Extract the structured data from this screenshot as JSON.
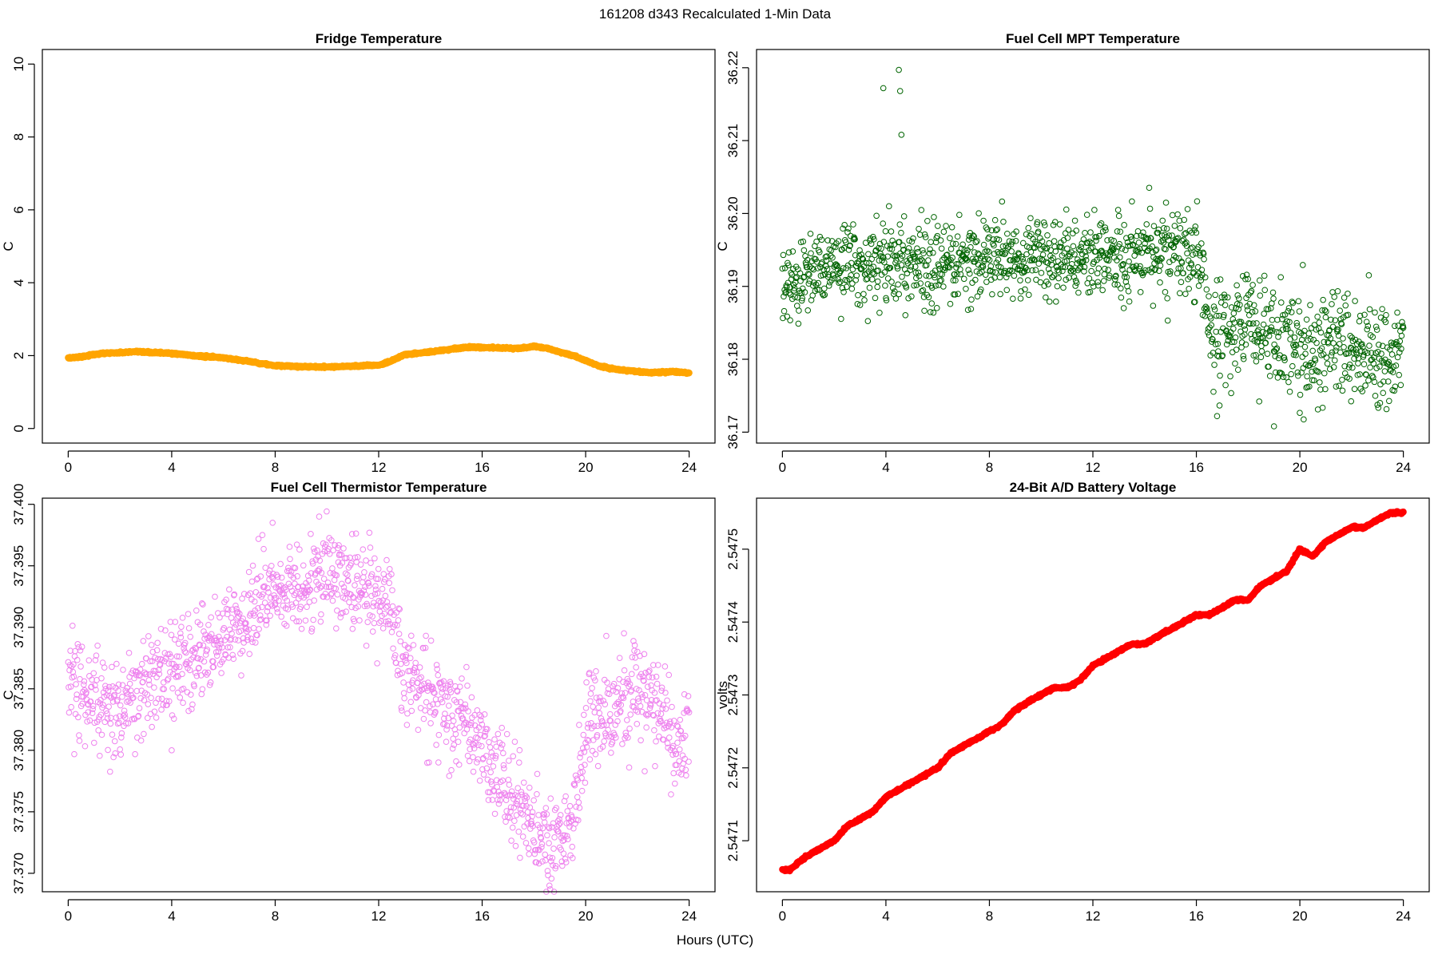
{
  "suptitle": "161208   d343   Recalculated 1-Min Data",
  "xlabel": "Hours (UTC)",
  "chart_data": [
    {
      "type": "scatter",
      "title": "Fridge Temperature",
      "ylabel": "C",
      "xlabel": "Hours (UTC)",
      "xlim": [
        -1,
        25
      ],
      "ylim": [
        -0.4,
        10.4
      ],
      "x_ticks": [
        0,
        4,
        8,
        12,
        16,
        20,
        24
      ],
      "y_ticks": [
        0,
        2,
        4,
        6,
        8,
        10
      ],
      "y_tick_labels": [
        "0",
        "2",
        "4",
        "6",
        "8",
        "10"
      ],
      "color": "#FFA500",
      "marker": "filled",
      "series": [
        {
          "name": "Fridge Temperature",
          "x": [
            0,
            0.5,
            1,
            1.5,
            2,
            2.5,
            3,
            3.5,
            4,
            5,
            6,
            7,
            8,
            9,
            10,
            11,
            11.5,
            12,
            12.5,
            13,
            14,
            15,
            15.5,
            16,
            17,
            17.5,
            18,
            18.5,
            19,
            19.5,
            20,
            20.5,
            21,
            21.5,
            22,
            22.5,
            23,
            23.5,
            24
          ],
          "y": [
            1.93,
            1.97,
            2.03,
            2.07,
            2.08,
            2.1,
            2.09,
            2.08,
            2.06,
            1.99,
            1.94,
            1.84,
            1.72,
            1.7,
            1.69,
            1.71,
            1.73,
            1.73,
            1.85,
            2.03,
            2.1,
            2.2,
            2.23,
            2.22,
            2.21,
            2.2,
            2.25,
            2.2,
            2.1,
            2.0,
            1.86,
            1.72,
            1.64,
            1.6,
            1.56,
            1.53,
            1.55,
            1.55,
            1.52
          ]
        }
      ]
    },
    {
      "type": "scatter",
      "title": "Fuel Cell MPT Temperature",
      "ylabel": "C",
      "xlabel": "Hours (UTC)",
      "xlim": [
        -1,
        25
      ],
      "ylim": [
        36.1685,
        36.2225
      ],
      "x_ticks": [
        0,
        4,
        8,
        12,
        16,
        20,
        24
      ],
      "y_ticks": [
        36.17,
        36.18,
        36.19,
        36.2,
        36.21,
        36.22
      ],
      "y_tick_labels": [
        "36.17",
        "36.18",
        "36.19",
        "36.20",
        "36.21",
        "36.22"
      ],
      "color": "#006400",
      "marker": "open",
      "series": [
        {
          "name": "Fuel Cell MPT Temperature",
          "x": [
            0,
            1,
            2,
            3,
            4,
            5,
            6,
            7,
            8,
            9,
            10,
            11,
            12,
            13,
            14,
            15,
            16,
            16.5,
            17,
            18,
            19,
            20,
            21,
            22,
            23,
            24
          ],
          "y": [
            36.19,
            36.192,
            36.193,
            36.193,
            36.194,
            36.193,
            36.193,
            36.193,
            36.194,
            36.194,
            36.194,
            36.194,
            36.194,
            36.194,
            36.195,
            36.195,
            36.195,
            36.186,
            36.184,
            36.185,
            36.183,
            36.181,
            36.182,
            36.182,
            36.18,
            36.18
          ],
          "outliers": [
            [
              3.9,
              36.2172
            ],
            [
              4.5,
              36.2197
            ],
            [
              4.55,
              36.2168
            ],
            [
              4.6,
              36.2108
            ],
            [
              19.0,
              36.1708
            ],
            [
              16.8,
              36.1722
            ]
          ]
        }
      ]
    },
    {
      "type": "scatter",
      "title": "Fuel Cell Thermistor Temperature",
      "ylabel": "C",
      "xlabel": "Hours (UTC)",
      "xlim": [
        -1,
        25
      ],
      "ylim": [
        37.3685,
        37.4005
      ],
      "x_ticks": [
        0,
        4,
        8,
        12,
        16,
        20,
        24
      ],
      "y_ticks": [
        37.37,
        37.375,
        37.38,
        37.385,
        37.39,
        37.395,
        37.4
      ],
      "y_tick_labels": [
        "37.370",
        "37.375",
        "37.380",
        "37.385",
        "37.390",
        "37.395",
        "37.400"
      ],
      "color": "#EE82EE",
      "marker": "open",
      "series": [
        {
          "name": "Fuel Cell Thermistor Temperature",
          "x": [
            0,
            1,
            2,
            3,
            4,
            5,
            6,
            7,
            8,
            9,
            10,
            11,
            12,
            12.5,
            13,
            14,
            15,
            16,
            17,
            18,
            18.5,
            19,
            19.5,
            20,
            21,
            22,
            23,
            23.5,
            24
          ],
          "y": [
            37.3855,
            37.384,
            37.383,
            37.3855,
            37.3865,
            37.388,
            37.389,
            37.391,
            37.393,
            37.3935,
            37.3945,
            37.3935,
            37.3925,
            37.3915,
            37.386,
            37.3845,
            37.384,
            37.38,
            37.377,
            37.3735,
            37.372,
            37.3725,
            37.374,
            37.3815,
            37.383,
            37.385,
            37.383,
            37.3795,
            37.382
          ],
          "outliers": [
            [
              9.7,
              37.399
            ],
            [
              7.9,
              37.3985
            ],
            [
              4.0,
              37.38
            ],
            [
              18.6,
              37.369
            ]
          ]
        }
      ]
    },
    {
      "type": "scatter",
      "title": "24-Bit A/D Battery Voltage",
      "ylabel": "volts",
      "xlabel": "Hours (UTC)",
      "xlim": [
        -1,
        25
      ],
      "ylim": [
        2.54703,
        2.54757
      ],
      "x_ticks": [
        0,
        4,
        8,
        12,
        16,
        20,
        24
      ],
      "y_ticks": [
        2.5471,
        2.5472,
        2.5473,
        2.5474,
        2.5475
      ],
      "y_tick_labels": [
        "2.5471",
        "2.5472",
        "2.5473",
        "2.5474",
        "2.5475"
      ],
      "color": "#FF0000",
      "marker": "filled",
      "series": [
        {
          "name": "24-Bit A/D Battery Voltage",
          "x": [
            0,
            0.3,
            0.6,
            1,
            1.5,
            2,
            2.5,
            3,
            3.5,
            4,
            4.5,
            5,
            5.5,
            6,
            6.5,
            7,
            7.5,
            8,
            8.5,
            9,
            9.5,
            10,
            10.5,
            11,
            11.5,
            12,
            12.5,
            13,
            13.5,
            14,
            14.5,
            15,
            15.5,
            16,
            16.5,
            17,
            17.5,
            18,
            18.5,
            19,
            19.5,
            20,
            20.5,
            21,
            21.5,
            22,
            22.5,
            23,
            23.5,
            24
          ],
          "y": [
            2.54706,
            2.54706,
            2.54707,
            2.54708,
            2.54709,
            2.5471,
            2.54712,
            2.54713,
            2.54714,
            2.54716,
            2.54717,
            2.54718,
            2.54719,
            2.5472,
            2.54722,
            2.54723,
            2.54724,
            2.54725,
            2.54726,
            2.54728,
            2.54729,
            2.5473,
            2.54731,
            2.54731,
            2.54732,
            2.54734,
            2.54735,
            2.54736,
            2.54737,
            2.54737,
            2.54738,
            2.54739,
            2.5474,
            2.54741,
            2.54741,
            2.54742,
            2.54743,
            2.54743,
            2.54745,
            2.54746,
            2.54747,
            2.5475,
            2.54749,
            2.54751,
            2.54752,
            2.54753,
            2.54753,
            2.54754,
            2.54755,
            2.54755
          ]
        }
      ]
    }
  ]
}
